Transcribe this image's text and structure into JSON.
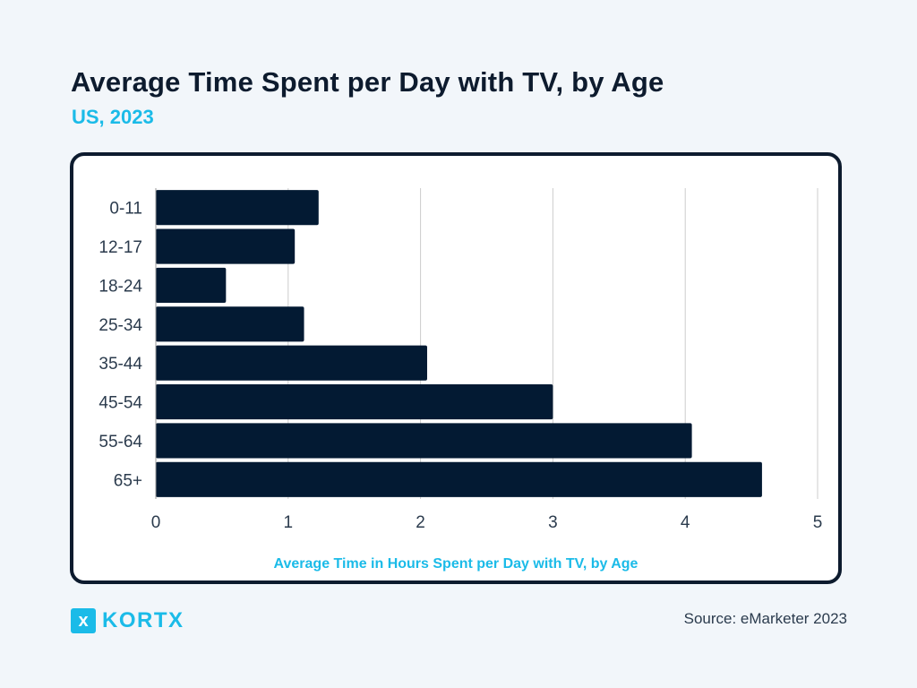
{
  "header": {
    "title": "Average Time Spent per Day with TV, by Age",
    "subtitle": "US, 2023"
  },
  "footer": {
    "logo_mark": "x",
    "logo_text": "KORTX",
    "source": "Source: eMarketer 2023"
  },
  "colors": {
    "bar": "#031a33",
    "accent": "#1bbbe8",
    "grid": "#cccccc"
  },
  "chart_data": {
    "type": "bar",
    "orientation": "horizontal",
    "title": "Average Time Spent per Day with TV, by Age",
    "subtitle": "US, 2023",
    "xlabel": "Average Time in Hours Spent per Day with TV, by Age",
    "ylabel": "",
    "categories": [
      "0-11",
      "12-17",
      "18-24",
      "25-34",
      "35-44",
      "45-54",
      "55-64",
      "65+"
    ],
    "values": [
      1.23,
      1.05,
      0.53,
      1.12,
      2.05,
      3.0,
      4.05,
      4.58
    ],
    "xlim": [
      0,
      5
    ],
    "xticks": [
      "0",
      "1",
      "2",
      "3",
      "4",
      "5"
    ],
    "grid": "vertical",
    "legend": "none"
  }
}
